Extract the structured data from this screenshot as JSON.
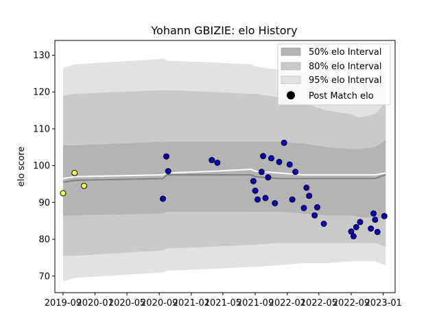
{
  "chart_data": {
    "type": "scatter",
    "title": "Yohann GBIZIE: elo History",
    "xlabel": "",
    "ylabel": "elo score",
    "xlim": [
      "2019-08-01",
      "2023-02-15"
    ],
    "ylim": [
      65.5,
      134
    ],
    "x_ticks": [
      "2019-09",
      "2020-01",
      "2020-05",
      "2020-09",
      "2021-01",
      "2021-05",
      "2021-09",
      "2022-01",
      "2022-05",
      "2022-09",
      "2023-01"
    ],
    "x_tick_dates": [
      "2019-09-01",
      "2020-01-01",
      "2020-05-01",
      "2020-09-01",
      "2021-01-01",
      "2021-05-01",
      "2021-09-01",
      "2022-01-01",
      "2022-05-01",
      "2022-09-01",
      "2023-01-01"
    ],
    "y_ticks": [
      70,
      80,
      90,
      100,
      110,
      120,
      130
    ],
    "legend": {
      "position": "top-right",
      "entries": [
        "50% elo Interval",
        "80% elo Interval",
        "95% elo Interval",
        "Post Match elo"
      ]
    },
    "colors": {
      "band50": "#b4b4b4",
      "band80": "#cacaca",
      "band95": "#e2e2e2",
      "mean_line": "#808080",
      "median_line": "#ffffff",
      "point_blue": "#0000cc",
      "point_yellow": "#ffff33",
      "point_edge": "#000000"
    },
    "bands": {
      "dates": [
        "2019-09-01",
        "2019-10-15",
        "2020-09-15",
        "2020-10-01",
        "2021-04-01",
        "2021-08-15",
        "2021-09-01",
        "2021-12-01",
        "2022-03-01",
        "2022-06-01",
        "2022-09-01",
        "2022-10-01",
        "2022-12-01",
        "2023-01-10"
      ],
      "p95_low": [
        68.5,
        69.5,
        71,
        71.5,
        72,
        72.5,
        72.5,
        73,
        73.5,
        73.5,
        74,
        74,
        74,
        73
      ],
      "p95_high": [
        126.5,
        127.5,
        129,
        128.5,
        128,
        127.5,
        127,
        126,
        125.5,
        123.5,
        122,
        121.5,
        122,
        126
      ],
      "p80_low": [
        75.5,
        75.5,
        77,
        77.5,
        78,
        78.5,
        78.5,
        79,
        79,
        79,
        79,
        79,
        79,
        78
      ],
      "p80_high": [
        119,
        119.5,
        120.5,
        120.5,
        120,
        119.5,
        119.5,
        118.5,
        117,
        115,
        114,
        113,
        114,
        117
      ],
      "p50_low": [
        86.5,
        86.5,
        87,
        87.5,
        87.5,
        87.5,
        87.5,
        87.5,
        87,
        86.5,
        86.5,
        86,
        86,
        85.5
      ],
      "p50_high": [
        105.5,
        105.5,
        106.5,
        106.5,
        106.5,
        106.5,
        106.5,
        106.5,
        106,
        105,
        104.5,
        104.5,
        105,
        107
      ],
      "mean": [
        95.5,
        96,
        96.5,
        97.5,
        97.5,
        97.5,
        97,
        96.5,
        96.5,
        96.5,
        96.5,
        96.5,
        96.5,
        97.5
      ],
      "median": [
        96.5,
        97,
        97.5,
        98,
        98.5,
        99,
        98.5,
        98,
        97.5,
        97.5,
        97.5,
        97.5,
        97.5,
        98
      ]
    },
    "series": [
      {
        "name": "Post Match elo",
        "points": [
          {
            "x": "2019-09-01",
            "y": 92.5,
            "color": "yellow"
          },
          {
            "x": "2019-10-15",
            "y": 98,
            "color": "yellow"
          },
          {
            "x": "2019-11-20",
            "y": 94.5,
            "color": "yellow"
          },
          {
            "x": "2020-09-15",
            "y": 91,
            "color": "blue"
          },
          {
            "x": "2020-09-28",
            "y": 102.5,
            "color": "blue"
          },
          {
            "x": "2020-10-05",
            "y": 98.5,
            "color": "blue"
          },
          {
            "x": "2021-03-20",
            "y": 101.5,
            "color": "blue"
          },
          {
            "x": "2021-04-10",
            "y": 100.8,
            "color": "blue"
          },
          {
            "x": "2021-08-25",
            "y": 95.8,
            "color": "blue"
          },
          {
            "x": "2021-09-01",
            "y": 93.2,
            "color": "blue"
          },
          {
            "x": "2021-09-10",
            "y": 90.8,
            "color": "blue"
          },
          {
            "x": "2021-09-25",
            "y": 98.3,
            "color": "blue"
          },
          {
            "x": "2021-10-01",
            "y": 102.6,
            "color": "blue"
          },
          {
            "x": "2021-10-10",
            "y": 91.2,
            "color": "blue"
          },
          {
            "x": "2021-10-20",
            "y": 96.8,
            "color": "blue"
          },
          {
            "x": "2021-11-01",
            "y": 102,
            "color": "blue"
          },
          {
            "x": "2021-11-15",
            "y": 89.8,
            "color": "blue"
          },
          {
            "x": "2021-12-01",
            "y": 101,
            "color": "blue"
          },
          {
            "x": "2021-12-20",
            "y": 106.2,
            "color": "blue"
          },
          {
            "x": "2022-01-10",
            "y": 100.3,
            "color": "blue"
          },
          {
            "x": "2022-01-20",
            "y": 90.8,
            "color": "blue"
          },
          {
            "x": "2022-02-01",
            "y": 98.3,
            "color": "blue"
          },
          {
            "x": "2022-03-05",
            "y": 88.5,
            "color": "blue"
          },
          {
            "x": "2022-03-15",
            "y": 94,
            "color": "blue"
          },
          {
            "x": "2022-03-25",
            "y": 91.8,
            "color": "blue"
          },
          {
            "x": "2022-04-15",
            "y": 86.5,
            "color": "blue"
          },
          {
            "x": "2022-04-25",
            "y": 88.7,
            "color": "blue"
          },
          {
            "x": "2022-05-20",
            "y": 84.2,
            "color": "blue"
          },
          {
            "x": "2022-09-01",
            "y": 82.1,
            "color": "blue"
          },
          {
            "x": "2022-09-10",
            "y": 80.8,
            "color": "blue"
          },
          {
            "x": "2022-09-20",
            "y": 83.3,
            "color": "blue"
          },
          {
            "x": "2022-10-05",
            "y": 84.7,
            "color": "blue"
          },
          {
            "x": "2022-11-15",
            "y": 82.9,
            "color": "blue"
          },
          {
            "x": "2022-11-25",
            "y": 87,
            "color": "blue"
          },
          {
            "x": "2022-12-01",
            "y": 85.3,
            "color": "blue"
          },
          {
            "x": "2022-12-10",
            "y": 82,
            "color": "blue"
          },
          {
            "x": "2023-01-05",
            "y": 86.3,
            "color": "blue"
          }
        ]
      }
    ]
  }
}
